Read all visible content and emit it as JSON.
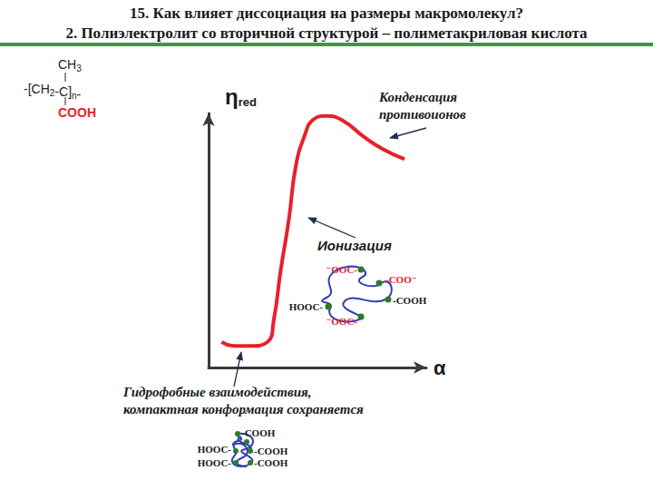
{
  "title": "15. Как  влияет диссоциация на размеры макромолекул?",
  "subtitle": "2. Полиэлектролит со вторичной структурой – полиметакриловая кислота",
  "formula": {
    "top": "CH3",
    "main": "-[CH2-C]n-",
    "bottom": "COOH"
  },
  "chart_data": {
    "type": "line",
    "x_label": "α",
    "y_label": "ηred",
    "x": [
      0.06,
      0.12,
      0.19,
      0.27,
      0.3,
      0.33,
      0.37,
      0.4,
      0.44,
      0.48,
      0.54,
      0.62,
      0.71,
      0.8,
      0.9
    ],
    "values": [
      0.1,
      0.085,
      0.085,
      0.1,
      0.19,
      0.375,
      0.59,
      0.79,
      0.91,
      0.975,
      0.99,
      0.97,
      0.91,
      0.86,
      0.82
    ],
    "color": "#e8202a",
    "xlim": [
      0,
      1
    ],
    "ylim": [
      0,
      1
    ],
    "tick_labels": false,
    "grid": false,
    "annotations": [
      "Конденсация\nпротивоионов",
      "Ионизация",
      "Гидрофобные взаимодействия,\nкомпактная конформация сохраняется"
    ]
  },
  "coils": {
    "ionized": [
      "⁻OOC-",
      "-COO⁻",
      "-COOH",
      "HOOC-",
      "⁻OOC-"
    ],
    "compact": [
      "-COOH",
      "HOOC-",
      "-COOH",
      "HOOC-",
      "-COOH"
    ]
  }
}
